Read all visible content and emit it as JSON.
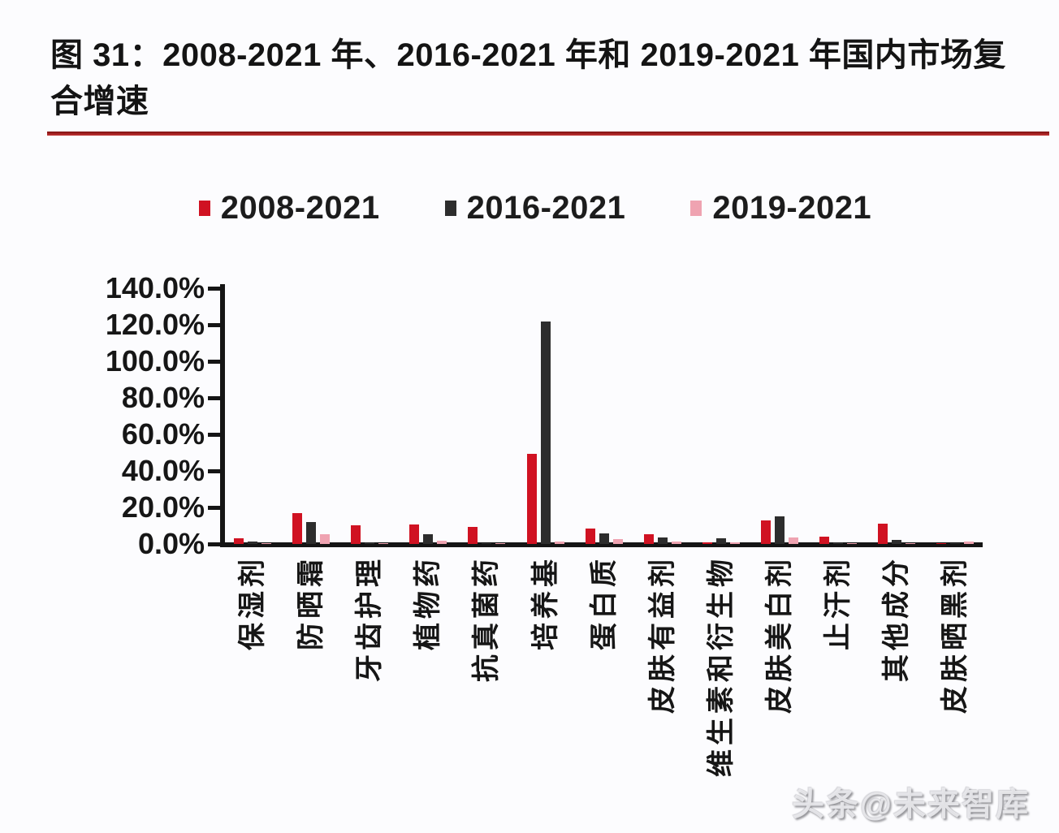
{
  "figure": {
    "title_line1": "图 31：2008-2021 年、2016-2021 年和 2019-2021 年国内市场复",
    "title_line2": "合增速",
    "title_rule_color": "#9e1a1a",
    "watermark": "头条@未来智库"
  },
  "chart_data": {
    "type": "bar",
    "title": "图 31：2008-2021 年、2016-2021 年和 2019-2021 年国内市场复合增速",
    "categories": [
      "保湿剂",
      "防晒霜",
      "牙齿护理",
      "植物药",
      "抗真菌药",
      "培养基",
      "蛋白质",
      "皮肤有益剂",
      "维生素和衍生物",
      "皮肤美白剂",
      "止汗剂",
      "其他成分",
      "皮肤晒黑剂"
    ],
    "series": [
      {
        "name": "2008-2021",
        "color": "#d01222",
        "values": [
          3.0,
          17.0,
          10.3,
          10.7,
          9.2,
          49.5,
          8.5,
          5.2,
          0.8,
          13.0,
          4.0,
          11.0,
          0.3
        ]
      },
      {
        "name": "2016-2021",
        "color": "#2d2d2d",
        "values": [
          1.2,
          12.0,
          0.8,
          5.2,
          0.5,
          122.0,
          6.0,
          3.4,
          3.0,
          15.0,
          0.8,
          2.2,
          0.3
        ]
      },
      {
        "name": "2019-2021",
        "color": "#efa3b1",
        "values": [
          0.5,
          5.5,
          0.3,
          2.0,
          0.3,
          1.5,
          2.5,
          1.5,
          1.0,
          3.5,
          0.3,
          0.3,
          1.5
        ]
      }
    ],
    "ylabel_ticks": [
      "140.0%",
      "120.0%",
      "100.0%",
      "80.0%",
      "60.0%",
      "40.0%",
      "20.0%",
      "0.0%"
    ],
    "ylim": [
      0,
      140
    ],
    "y_tick_step": 20,
    "grid": false,
    "legend_position": "top",
    "xlabel": "",
    "ylabel": ""
  }
}
